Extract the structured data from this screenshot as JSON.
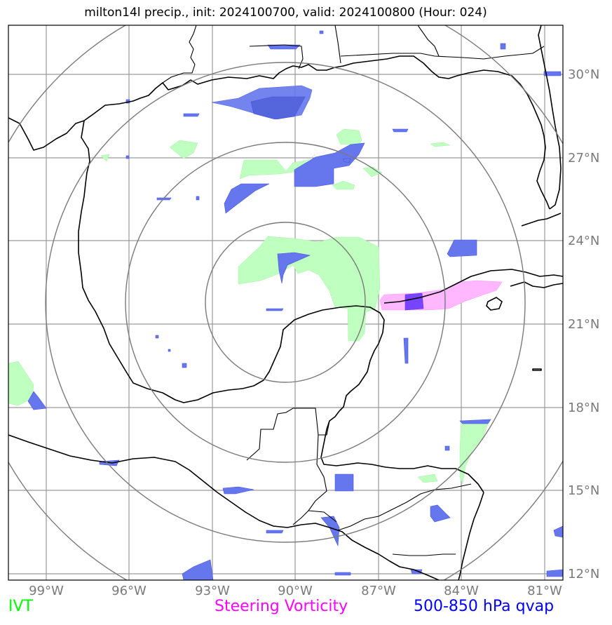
{
  "title": "milton14l precip., init: 2024100700, valid: 2024100800 (Hour: 024)",
  "map": {
    "lon_range": [
      -100.4,
      -80.6
    ],
    "lat_range": [
      11.8,
      32.0
    ],
    "lat_ticks": [
      "30°N",
      "27°N",
      "24°N",
      "21°N",
      "18°N",
      "15°N",
      "12°N"
    ],
    "lon_ticks": [
      "99°W",
      "96°W",
      "93°W",
      "90°W",
      "87°W",
      "84°W",
      "81°W"
    ],
    "range_rings_center": {
      "lon": -90.3,
      "lat": 22.0
    },
    "range_rings_count": 4,
    "colors": {
      "ivt": "#bfffbf",
      "steering_vorticity": "#ff88ff",
      "qvap": "#3344ee",
      "coast": "#000000",
      "grid": "#9a9a9a",
      "rings": "#7a7a7a"
    }
  },
  "legend": {
    "ivt": {
      "label": "IVT",
      "color": "#00ff00"
    },
    "steering_vorticity": {
      "label": "Steering Vorticity",
      "color": "#ff00ff"
    },
    "qvap": {
      "label": "500-850 hPa qvap",
      "color": "#0000ff"
    }
  }
}
